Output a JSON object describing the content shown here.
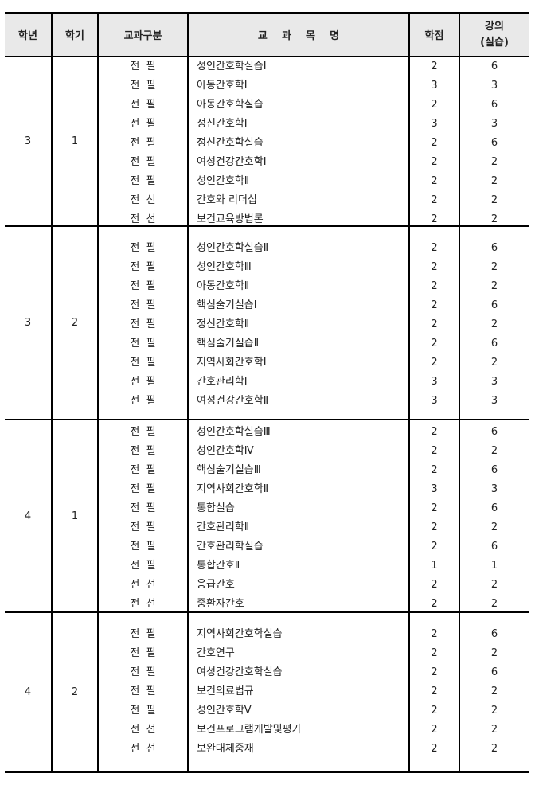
{
  "header": {
    "grade": "학년",
    "semester": "학기",
    "category": "교과구분",
    "course": "교    과    목    명",
    "credits": "학점",
    "lecture_line1": "강의",
    "lecture_line2": "(실습)"
  },
  "groups": [
    {
      "grade": "3",
      "semester": "1",
      "courses": [
        {
          "cat": "전  필",
          "name": "성인간호학실습Ⅰ",
          "credits": "2",
          "hours": "6"
        },
        {
          "cat": "전  필",
          "name": "아동간호학Ⅰ",
          "credits": "3",
          "hours": "3"
        },
        {
          "cat": "전  필",
          "name": "아동간호학실습",
          "credits": "2",
          "hours": "6"
        },
        {
          "cat": "전  필",
          "name": "정신간호학Ⅰ",
          "credits": "3",
          "hours": "3"
        },
        {
          "cat": "전  필",
          "name": "정신간호학실습",
          "credits": "2",
          "hours": "6"
        },
        {
          "cat": "전  필",
          "name": "여성건강간호학Ⅰ",
          "credits": "2",
          "hours": "2"
        },
        {
          "cat": "전  필",
          "name": "성인간호학Ⅱ",
          "credits": "2",
          "hours": "2"
        },
        {
          "cat": "전  선",
          "name": "간호와 리더십",
          "credits": "2",
          "hours": "2"
        },
        {
          "cat": "전  선",
          "name": "보건교육방법론",
          "credits": "2",
          "hours": "2"
        }
      ]
    },
    {
      "grade": "3",
      "semester": "2",
      "courses": [
        {
          "cat": "전  필",
          "name": "성인간호학실습Ⅱ",
          "credits": "2",
          "hours": "6"
        },
        {
          "cat": "전  필",
          "name": "성인간호학Ⅲ",
          "credits": "2",
          "hours": "2"
        },
        {
          "cat": "전  필",
          "name": "아동간호학Ⅱ",
          "credits": "2",
          "hours": "2"
        },
        {
          "cat": "전  필",
          "name": "핵심술기실습Ⅰ",
          "credits": "2",
          "hours": "6"
        },
        {
          "cat": "전  필",
          "name": "정신간호학Ⅱ",
          "credits": "2",
          "hours": "2"
        },
        {
          "cat": "전  필",
          "name": "핵심술기실습Ⅱ",
          "credits": "2",
          "hours": "6"
        },
        {
          "cat": "전  필",
          "name": "지역사회간호학Ⅰ",
          "credits": "2",
          "hours": "2"
        },
        {
          "cat": "전  필",
          "name": "간호관리학Ⅰ",
          "credits": "3",
          "hours": "3"
        },
        {
          "cat": "전  필",
          "name": "여성건강간호학Ⅱ",
          "credits": "3",
          "hours": "3"
        }
      ]
    },
    {
      "grade": "4",
      "semester": "1",
      "courses": [
        {
          "cat": "전  필",
          "name": "성인간호학실습Ⅲ",
          "credits": "2",
          "hours": "6"
        },
        {
          "cat": "전  필",
          "name": "성인간호학Ⅳ",
          "credits": "2",
          "hours": "2"
        },
        {
          "cat": "전  필",
          "name": "핵심술기실습Ⅲ",
          "credits": "2",
          "hours": "6"
        },
        {
          "cat": "전  필",
          "name": "지역사회간호학Ⅱ",
          "credits": "3",
          "hours": "3"
        },
        {
          "cat": "전  필",
          "name": "통합실습",
          "credits": "2",
          "hours": "6"
        },
        {
          "cat": "전  필",
          "name": "간호관리학Ⅱ",
          "credits": "2",
          "hours": "2"
        },
        {
          "cat": "전  필",
          "name": "간호관리학실습",
          "credits": "2",
          "hours": "6"
        },
        {
          "cat": "전  필",
          "name": "통합간호Ⅱ",
          "credits": "1",
          "hours": "1"
        },
        {
          "cat": "전  선",
          "name": "응급간호",
          "credits": "2",
          "hours": "2"
        },
        {
          "cat": "전  선",
          "name": "중환자간호",
          "credits": "2",
          "hours": "2"
        }
      ]
    },
    {
      "grade": "4",
      "semester": "2",
      "courses": [
        {
          "cat": "전  필",
          "name": "지역사회간호학실습",
          "credits": "2",
          "hours": "6"
        },
        {
          "cat": "전  필",
          "name": "간호연구",
          "credits": "2",
          "hours": "2"
        },
        {
          "cat": "전  필",
          "name": "여성건강간호학실습",
          "credits": "2",
          "hours": "6"
        },
        {
          "cat": "전  필",
          "name": "보건의료법규",
          "credits": "2",
          "hours": "2"
        },
        {
          "cat": "전  필",
          "name": "성인간호학Ⅴ",
          "credits": "2",
          "hours": "2"
        },
        {
          "cat": "전  선",
          "name": "보건프로그램개발및평가",
          "credits": "2",
          "hours": "2"
        },
        {
          "cat": "전  선",
          "name": "보완대체중재",
          "credits": "2",
          "hours": "2"
        }
      ]
    }
  ]
}
